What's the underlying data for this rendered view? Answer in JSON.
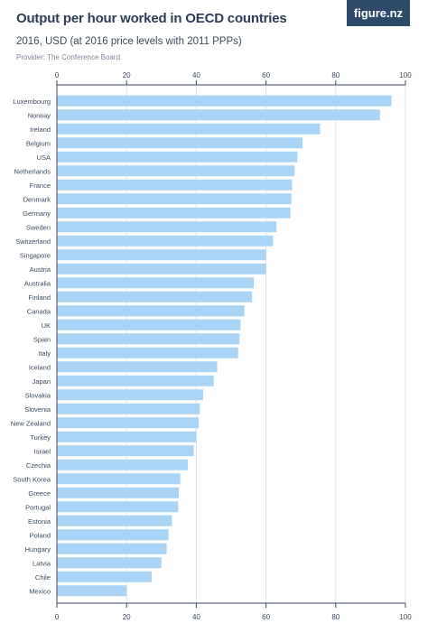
{
  "header": {
    "title": "Output per hour worked in OECD countries",
    "subtitle": "2016, USD (at 2016 price levels with 2011 PPPs)",
    "provider": "Provider: The Conference Board",
    "logo": "figure.nz"
  },
  "colors": {
    "bar": "#aad4f5",
    "grid": "#dde2e8",
    "axis": "#3b4a5c",
    "logo_bg": "#2d4a6a"
  },
  "chart_data": {
    "type": "bar",
    "orientation": "horizontal",
    "title": "Output per hour worked in OECD countries",
    "subtitle": "2016, USD (at 2016 price levels with 2011 PPPs)",
    "xlim": [
      0,
      100
    ],
    "ticks": [
      0,
      20,
      40,
      60,
      80,
      100
    ],
    "grid": true,
    "categories": [
      "Luxembourg",
      "Norway",
      "Ireland",
      "Belgium",
      "USA",
      "Netherlands",
      "France",
      "Denmark",
      "Germany",
      "Sweden",
      "Switzerland",
      "Singapore",
      "Austria",
      "Australia",
      "Finland",
      "Canada",
      "UK",
      "Spain",
      "Italy",
      "Iceland",
      "Japan",
      "Slovakia",
      "Slovenia",
      "New Zealand",
      "Turkey",
      "Israel",
      "Czechia",
      "South Korea",
      "Greece",
      "Portugal",
      "Estonia",
      "Poland",
      "Hungary",
      "Latvia",
      "Chile",
      "Mexico"
    ],
    "values": [
      96,
      92.7,
      75.5,
      70.5,
      69,
      68.2,
      67.5,
      67.3,
      67,
      63,
      62,
      60,
      60,
      56.5,
      56,
      53.8,
      52.7,
      52.4,
      52,
      46,
      45,
      42,
      41,
      40.7,
      40,
      39.3,
      37.6,
      35.4,
      35,
      34.8,
      33,
      32,
      31.5,
      30,
      27.2,
      20
    ]
  }
}
